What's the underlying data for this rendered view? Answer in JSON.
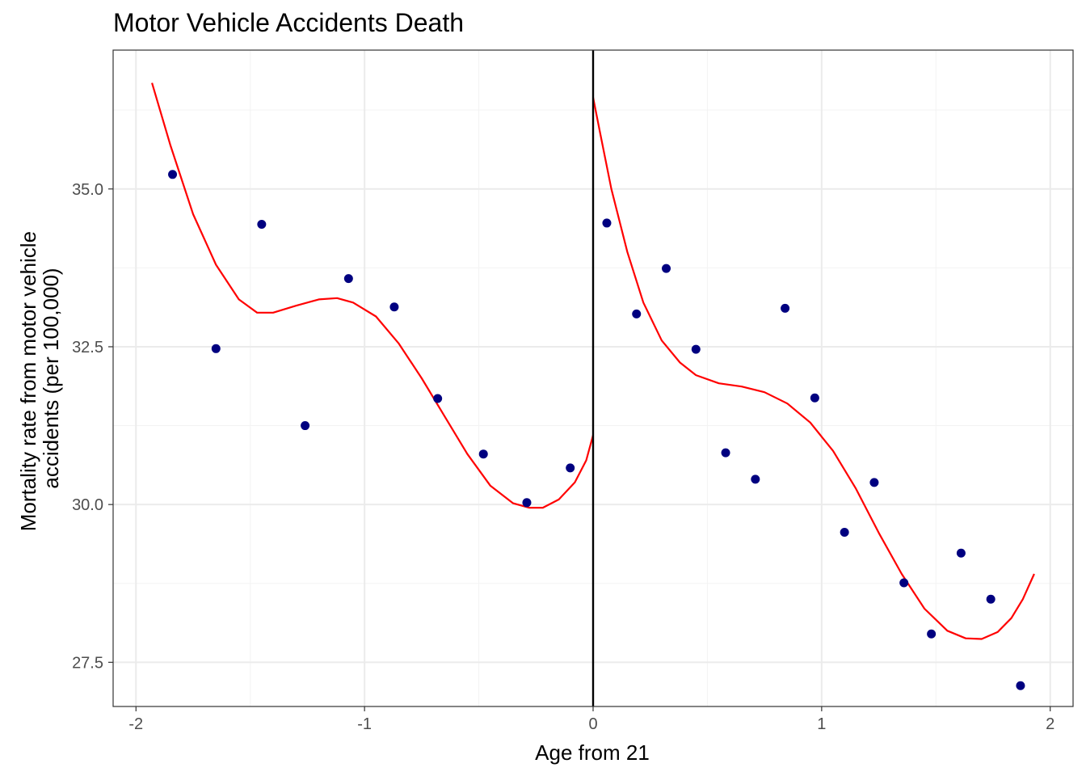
{
  "chart_data": {
    "type": "scatter",
    "title": "Motor Vehicle Accidents Death",
    "xlabel": "Age from 21",
    "ylabel_lines": [
      "Mortality rate from motor vehicle",
      "accidents (per 100,000)"
    ],
    "xlim": [
      -2.1,
      2.1
    ],
    "ylim": [
      26.8,
      37.2
    ],
    "x_ticks": [
      -2,
      -1,
      0,
      1,
      2
    ],
    "x_tick_labels": [
      "-2",
      "-1",
      "0",
      "1",
      "2"
    ],
    "y_ticks": [
      27.5,
      30.0,
      32.5,
      35.0
    ],
    "y_tick_labels": [
      "27.5",
      "30.0",
      "32.5",
      "35.0"
    ],
    "grid": true,
    "cutoff_x": 0,
    "points": [
      {
        "x": -1.84,
        "y": 35.23
      },
      {
        "x": -1.65,
        "y": 32.47
      },
      {
        "x": -1.45,
        "y": 34.44
      },
      {
        "x": -1.26,
        "y": 31.25
      },
      {
        "x": -1.07,
        "y": 33.58
      },
      {
        "x": -0.87,
        "y": 33.13
      },
      {
        "x": -0.68,
        "y": 31.68
      },
      {
        "x": -0.48,
        "y": 30.8
      },
      {
        "x": -0.29,
        "y": 30.03
      },
      {
        "x": -0.1,
        "y": 30.58
      },
      {
        "x": 0.06,
        "y": 34.46
      },
      {
        "x": 0.19,
        "y": 33.02
      },
      {
        "x": 0.32,
        "y": 33.74
      },
      {
        "x": 0.45,
        "y": 32.46
      },
      {
        "x": 0.58,
        "y": 30.82
      },
      {
        "x": 0.71,
        "y": 30.4
      },
      {
        "x": 0.84,
        "y": 33.11
      },
      {
        "x": 0.97,
        "y": 31.69
      },
      {
        "x": 1.1,
        "y": 29.56
      },
      {
        "x": 1.23,
        "y": 30.35
      },
      {
        "x": 1.36,
        "y": 28.76
      },
      {
        "x": 1.48,
        "y": 27.95
      },
      {
        "x": 1.61,
        "y": 29.23
      },
      {
        "x": 1.74,
        "y": 28.5
      },
      {
        "x": 1.87,
        "y": 27.13
      }
    ],
    "fit_left": [
      {
        "x": -1.93,
        "y": 36.68
      },
      {
        "x": -1.85,
        "y": 35.7
      },
      {
        "x": -1.75,
        "y": 34.6
      },
      {
        "x": -1.65,
        "y": 33.8
      },
      {
        "x": -1.55,
        "y": 33.25
      },
      {
        "x": -1.47,
        "y": 33.04
      },
      {
        "x": -1.4,
        "y": 33.04
      },
      {
        "x": -1.3,
        "y": 33.15
      },
      {
        "x": -1.2,
        "y": 33.25
      },
      {
        "x": -1.12,
        "y": 33.27
      },
      {
        "x": -1.05,
        "y": 33.2
      },
      {
        "x": -0.95,
        "y": 32.98
      },
      {
        "x": -0.85,
        "y": 32.55
      },
      {
        "x": -0.75,
        "y": 32.0
      },
      {
        "x": -0.65,
        "y": 31.4
      },
      {
        "x": -0.55,
        "y": 30.8
      },
      {
        "x": -0.45,
        "y": 30.3
      },
      {
        "x": -0.35,
        "y": 30.02
      },
      {
        "x": -0.28,
        "y": 29.95
      },
      {
        "x": -0.22,
        "y": 29.95
      },
      {
        "x": -0.15,
        "y": 30.08
      },
      {
        "x": -0.08,
        "y": 30.35
      },
      {
        "x": -0.03,
        "y": 30.7
      },
      {
        "x": 0.0,
        "y": 31.1
      }
    ],
    "fit_right": [
      {
        "x": 0.0,
        "y": 36.45
      },
      {
        "x": 0.03,
        "y": 35.9
      },
      {
        "x": 0.08,
        "y": 35.0
      },
      {
        "x": 0.15,
        "y": 34.0
      },
      {
        "x": 0.22,
        "y": 33.2
      },
      {
        "x": 0.3,
        "y": 32.6
      },
      {
        "x": 0.38,
        "y": 32.25
      },
      {
        "x": 0.45,
        "y": 32.05
      },
      {
        "x": 0.55,
        "y": 31.92
      },
      {
        "x": 0.65,
        "y": 31.87
      },
      {
        "x": 0.75,
        "y": 31.78
      },
      {
        "x": 0.85,
        "y": 31.6
      },
      {
        "x": 0.95,
        "y": 31.3
      },
      {
        "x": 1.05,
        "y": 30.85
      },
      {
        "x": 1.15,
        "y": 30.25
      },
      {
        "x": 1.25,
        "y": 29.55
      },
      {
        "x": 1.35,
        "y": 28.9
      },
      {
        "x": 1.45,
        "y": 28.35
      },
      {
        "x": 1.55,
        "y": 28.0
      },
      {
        "x": 1.63,
        "y": 27.88
      },
      {
        "x": 1.7,
        "y": 27.87
      },
      {
        "x": 1.77,
        "y": 27.98
      },
      {
        "x": 1.83,
        "y": 28.2
      },
      {
        "x": 1.88,
        "y": 28.5
      },
      {
        "x": 1.93,
        "y": 28.9
      }
    ],
    "colors": {
      "points": "#000080",
      "fit": "#ff0000",
      "cutoff": "#000000",
      "grid_major": "#ebebeb",
      "grid_minor": "#f3f3f3",
      "panel_border": "#333333",
      "tick_label": "#4d4d4d"
    }
  }
}
